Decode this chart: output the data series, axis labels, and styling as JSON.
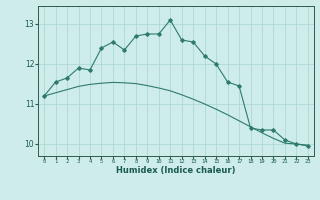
{
  "xlabel": "Humidex (Indice chaleur)",
  "ylabel": "",
  "background_color": "#ceecea",
  "grid_color": "#aed8d4",
  "line_color": "#2e7b6e",
  "x_values": [
    0,
    1,
    2,
    3,
    4,
    5,
    6,
    7,
    8,
    9,
    10,
    11,
    12,
    13,
    14,
    15,
    16,
    17,
    18,
    19,
    20,
    21,
    22,
    23
  ],
  "y_series1": [
    11.2,
    11.55,
    11.65,
    11.9,
    11.85,
    12.4,
    12.55,
    12.35,
    12.7,
    12.75,
    12.75,
    13.1,
    12.6,
    12.55,
    12.2,
    12.0,
    11.55,
    11.45,
    10.4,
    10.35,
    10.35,
    10.1,
    10.0,
    9.95
  ],
  "y_linear1": [
    11.2,
    11.28,
    11.36,
    11.44,
    11.49,
    11.52,
    11.54,
    11.53,
    11.51,
    11.46,
    11.4,
    11.33,
    11.23,
    11.12,
    11.0,
    10.87,
    10.73,
    10.58,
    10.43,
    10.28,
    10.14,
    10.02,
    10.0,
    9.97
  ],
  "ylim": [
    9.7,
    13.45
  ],
  "xlim": [
    -0.5,
    23.5
  ],
  "yticks": [
    10,
    11,
    12,
    13
  ],
  "xticks": [
    0,
    1,
    2,
    3,
    4,
    5,
    6,
    7,
    8,
    9,
    10,
    11,
    12,
    13,
    14,
    15,
    16,
    17,
    18,
    19,
    20,
    21,
    22,
    23
  ],
  "xtick_labels": [
    "0",
    "1",
    "2",
    "3",
    "4",
    "5",
    "6",
    "7",
    "8",
    "9",
    "10",
    "11",
    "12",
    "13",
    "14",
    "15",
    "16",
    "17",
    "18",
    "19",
    "20",
    "21",
    "22",
    "23"
  ]
}
